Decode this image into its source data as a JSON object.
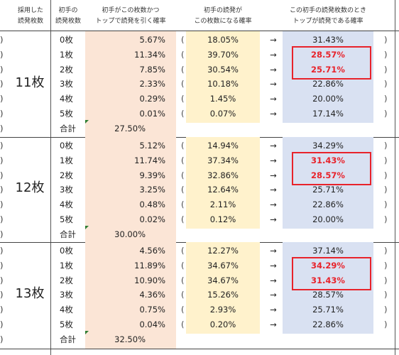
{
  "headers": {
    "adopted": [
      "採用した",
      "読発枚数"
    ],
    "initial": [
      "初手の",
      "読発枚数"
    ],
    "prob_with_top": [
      "初手がこの枚数かつ",
      "トップで読発を引く確率"
    ],
    "prob_initial": [
      "初手の読発が",
      "この枚数になる確率"
    ],
    "prob_top_given": [
      "この初手の読発枚数のとき",
      "トップが読発である確率"
    ]
  },
  "edge_marker": ")",
  "paren_left": "(",
  "paren_right": ")",
  "arrow": "→",
  "colors": {
    "col_prob_with_top_bg": "#fbe5d6",
    "col_prob_initial_bg": "#fff2cc",
    "col_prob_top_given_bg": "#d9e1f2",
    "highlight_red": "#e8232b",
    "border": "#444444"
  },
  "groups": [
    {
      "adopted": "11枚",
      "rows": [
        {
          "initial": "0枚",
          "prob_with_top": "5.67%",
          "prob_initial": "18.05%",
          "prob_top_given": "31.43%",
          "highlight": false
        },
        {
          "initial": "1枚",
          "prob_with_top": "11.34%",
          "prob_initial": "39.70%",
          "prob_top_given": "28.57%",
          "highlight": true
        },
        {
          "initial": "2枚",
          "prob_with_top": "7.85%",
          "prob_initial": "30.54%",
          "prob_top_given": "25.71%",
          "highlight": true
        },
        {
          "initial": "3枚",
          "prob_with_top": "2.33%",
          "prob_initial": "10.18%",
          "prob_top_given": "22.86%",
          "highlight": false
        },
        {
          "initial": "4枚",
          "prob_with_top": "0.29%",
          "prob_initial": "1.45%",
          "prob_top_given": "20.00%",
          "highlight": false
        },
        {
          "initial": "5枚",
          "prob_with_top": "0.01%",
          "prob_initial": "0.07%",
          "prob_top_given": "17.14%",
          "highlight": false
        }
      ],
      "total_label": "合計",
      "total": "27.50%"
    },
    {
      "adopted": "12枚",
      "rows": [
        {
          "initial": "0枚",
          "prob_with_top": "5.12%",
          "prob_initial": "14.94%",
          "prob_top_given": "34.29%",
          "highlight": false
        },
        {
          "initial": "1枚",
          "prob_with_top": "11.74%",
          "prob_initial": "37.34%",
          "prob_top_given": "31.43%",
          "highlight": true
        },
        {
          "initial": "2枚",
          "prob_with_top": "9.39%",
          "prob_initial": "32.86%",
          "prob_top_given": "28.57%",
          "highlight": true
        },
        {
          "initial": "3枚",
          "prob_with_top": "3.25%",
          "prob_initial": "12.64%",
          "prob_top_given": "25.71%",
          "highlight": false
        },
        {
          "initial": "4枚",
          "prob_with_top": "0.48%",
          "prob_initial": "2.11%",
          "prob_top_given": "22.86%",
          "highlight": false
        },
        {
          "initial": "5枚",
          "prob_with_top": "0.02%",
          "prob_initial": "0.12%",
          "prob_top_given": "20.00%",
          "highlight": false
        }
      ],
      "total_label": "合計",
      "total": "30.00%"
    },
    {
      "adopted": "13枚",
      "rows": [
        {
          "initial": "0枚",
          "prob_with_top": "4.56%",
          "prob_initial": "12.27%",
          "prob_top_given": "37.14%",
          "highlight": false
        },
        {
          "initial": "1枚",
          "prob_with_top": "11.89%",
          "prob_initial": "34.67%",
          "prob_top_given": "34.29%",
          "highlight": true
        },
        {
          "initial": "2枚",
          "prob_with_top": "10.90%",
          "prob_initial": "34.67%",
          "prob_top_given": "31.43%",
          "highlight": true
        },
        {
          "initial": "3枚",
          "prob_with_top": "4.36%",
          "prob_initial": "15.26%",
          "prob_top_given": "28.57%",
          "highlight": false
        },
        {
          "initial": "4枚",
          "prob_with_top": "0.75%",
          "prob_initial": "2.93%",
          "prob_top_given": "25.71%",
          "highlight": false
        },
        {
          "initial": "5枚",
          "prob_with_top": "0.04%",
          "prob_initial": "0.20%",
          "prob_top_given": "22.86%",
          "highlight": false
        }
      ],
      "total_label": "合計",
      "total": "32.50%"
    }
  ]
}
